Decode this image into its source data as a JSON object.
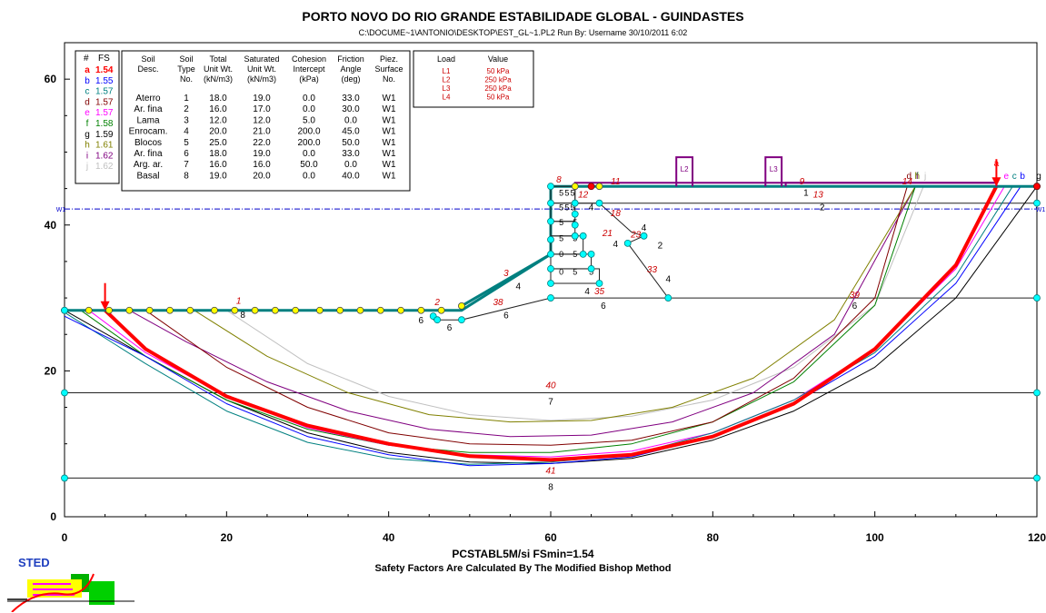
{
  "header": {
    "title": "PORTO NOVO DO RIO GRANDE ESTABILIDADE GLOBAL - GUINDASTES",
    "subtitle": "C:\\DOCUME~1\\ANTONIO\\DESKTOP\\EST_GL~1.PL2   Run By: Username   30/10/2011   6:02"
  },
  "footer": {
    "line1": "PCSTABL5M/si  FSmin=1.54",
    "line2": "Safety Factors Are Calculated By The Modified Bishop Method"
  },
  "logo": {
    "text": "STED"
  },
  "colors": {
    "critical": "#ff0000",
    "water": "#0000cc",
    "profile": "#008080",
    "node": "#ffff00",
    "node2": "#00ffff"
  },
  "chart_data": {
    "type": "line",
    "xlim": [
      0,
      120
    ],
    "ylim": [
      0,
      65
    ],
    "xticks": [
      0,
      20,
      40,
      60,
      80,
      100,
      120
    ],
    "yticks": [
      0,
      20,
      40,
      60
    ],
    "fs_table": {
      "headers": [
        "#",
        "FS"
      ],
      "rows": [
        {
          "id": "a",
          "fs": "1.54",
          "color": "#ff0000"
        },
        {
          "id": "b",
          "fs": "1.55",
          "color": "#0000ff"
        },
        {
          "id": "c",
          "fs": "1.57",
          "color": "#008080"
        },
        {
          "id": "d",
          "fs": "1.57",
          "color": "#800000"
        },
        {
          "id": "e",
          "fs": "1.57",
          "color": "#ff00ff"
        },
        {
          "id": "f",
          "fs": "1.58",
          "color": "#008000"
        },
        {
          "id": "g",
          "fs": "1.59",
          "color": "#000000"
        },
        {
          "id": "h",
          "fs": "1.61",
          "color": "#808000"
        },
        {
          "id": "i",
          "fs": "1.62",
          "color": "#800080"
        },
        {
          "id": "j",
          "fs": "1.62",
          "color": "#c0c0c0"
        }
      ]
    },
    "soil_table": {
      "headers": [
        [
          "Soil",
          "Desc.",
          ""
        ],
        [
          "Soil",
          "Type",
          "No."
        ],
        [
          "Total",
          "Unit Wt.",
          "(kN/m3)"
        ],
        [
          "Saturated",
          "Unit Wt.",
          "(kN/m3)"
        ],
        [
          "Cohesion",
          "Intercept",
          "(kPa)"
        ],
        [
          "Friction",
          "Angle",
          "(deg)"
        ],
        [
          "Piez.",
          "Surface",
          "No."
        ]
      ],
      "rows": [
        [
          "Aterro",
          "1",
          "18.0",
          "19.0",
          "0.0",
          "33.0",
          "W1"
        ],
        [
          "Ar. fina",
          "2",
          "16.0",
          "17.0",
          "0.0",
          "30.0",
          "W1"
        ],
        [
          "Lama",
          "3",
          "12.0",
          "12.0",
          "5.0",
          "0.0",
          "W1"
        ],
        [
          "Enrocam.",
          "4",
          "20.0",
          "21.0",
          "200.0",
          "45.0",
          "W1"
        ],
        [
          "Blocos",
          "5",
          "25.0",
          "22.0",
          "200.0",
          "50.0",
          "W1"
        ],
        [
          "Ar. fina",
          "6",
          "18.0",
          "19.0",
          "0.0",
          "33.0",
          "W1"
        ],
        [
          "Arg. ar.",
          "7",
          "16.0",
          "16.0",
          "50.0",
          "0.0",
          "W1"
        ],
        [
          "Basal",
          "8",
          "19.0",
          "20.0",
          "0.0",
          "40.0",
          "W1"
        ]
      ]
    },
    "load_table": {
      "headers": [
        "Load",
        "Value"
      ],
      "rows": [
        [
          "L1",
          "50 kPa"
        ],
        [
          "L2",
          "250 kPa"
        ],
        [
          "L3",
          "250 kPa"
        ],
        [
          "L4",
          "50 kPa"
        ]
      ]
    },
    "loads": [
      {
        "label": "L1",
        "x1": 63,
        "x2": 115,
        "h": 0.5
      },
      {
        "label": "L2",
        "x1": 75.5,
        "x2": 77.5,
        "h": 4
      },
      {
        "label": "L3",
        "x1": 86.5,
        "x2": 88.5,
        "h": 4
      },
      {
        "label": "L4",
        "x1": 89,
        "x2": 115,
        "h": 0.5
      }
    ],
    "water_table": {
      "label": "W1",
      "y": 42.2
    },
    "surface": {
      "x": [
        0,
        49,
        60,
        60,
        63,
        120
      ],
      "y": [
        28.3,
        28.3,
        36,
        45.3,
        45.3,
        45.3
      ]
    },
    "layer_lines": [
      {
        "x": [
          63,
          120
        ],
        "y": [
          43,
          43
        ],
        "label": "2"
      },
      {
        "x": [
          60,
          74.5,
          120
        ],
        "y": [
          30,
          30,
          30
        ],
        "label": "6"
      },
      {
        "x": [
          0,
          120
        ],
        "y": [
          17,
          17
        ],
        "label": "7"
      },
      {
        "x": [
          0,
          120
        ],
        "y": [
          5.3,
          5.3
        ],
        "label": "8"
      },
      {
        "x": [
          45.5,
          49,
          60
        ],
        "y": [
          27,
          27,
          30
        ],
        "label": "6"
      },
      {
        "x": [
          63,
          66,
          70,
          71.5,
          69.5,
          74.5
        ],
        "y": [
          43,
          43,
          39,
          38.5,
          37.5,
          30
        ],
        "label": "4"
      }
    ],
    "failure_surfaces": [
      {
        "id": "a",
        "color": "#ff0000",
        "width": 4,
        "x": [
          5,
          10,
          20,
          30,
          40,
          50,
          60,
          70,
          80,
          90,
          100,
          110,
          115
        ],
        "y": [
          28.3,
          23,
          16.5,
          12.5,
          10,
          8.3,
          7.8,
          8.5,
          11,
          15.5,
          23,
          34.5,
          45.3
        ]
      },
      {
        "id": "b",
        "color": "#0000ff",
        "width": 1,
        "x": [
          0,
          10,
          20,
          30,
          40,
          50,
          60,
          70,
          80,
          90,
          100,
          110,
          118
        ],
        "y": [
          27.5,
          22,
          15.5,
          11,
          8.5,
          7,
          7.3,
          8.2,
          11,
          15.5,
          22,
          32,
          45.3
        ]
      },
      {
        "id": "c",
        "color": "#008080",
        "width": 1,
        "x": [
          0,
          10,
          20,
          30,
          40,
          50,
          60,
          70,
          80,
          90,
          100,
          110,
          117
        ],
        "y": [
          28,
          21,
          14.5,
          10.2,
          8,
          7.2,
          7.5,
          8.5,
          11.5,
          16,
          22.5,
          33,
          45.3
        ]
      },
      {
        "id": "d",
        "color": "#800000",
        "width": 1,
        "x": [
          10,
          20,
          30,
          40,
          50,
          60,
          70,
          80,
          90,
          100,
          104
        ],
        "y": [
          28.3,
          20.5,
          15,
          11.5,
          10,
          9.8,
          10.5,
          13,
          19,
          30,
          45.3
        ]
      },
      {
        "id": "e",
        "color": "#ff00ff",
        "width": 1,
        "x": [
          3,
          10,
          20,
          30,
          40,
          50,
          60,
          70,
          80,
          90,
          100,
          110,
          116
        ],
        "y": [
          28.3,
          22.5,
          16.5,
          12.2,
          9.8,
          8.5,
          8.2,
          9,
          11.5,
          16,
          23,
          34,
          45.3
        ]
      },
      {
        "id": "f",
        "color": "#008000",
        "width": 1,
        "x": [
          2,
          10,
          20,
          30,
          40,
          50,
          60,
          70,
          80,
          90,
          100,
          105
        ],
        "y": [
          28.3,
          22,
          16,
          12,
          9.8,
          8.8,
          8.8,
          10,
          13,
          18.5,
          29,
          45.3
        ]
      },
      {
        "id": "g",
        "color": "#000000",
        "width": 1,
        "x": [
          0,
          10,
          20,
          30,
          40,
          50,
          60,
          70,
          80,
          90,
          100,
          110,
          120
        ],
        "y": [
          28.3,
          22,
          16,
          11.5,
          8.8,
          7.5,
          7.3,
          8,
          10.5,
          14.5,
          20.5,
          30,
          45.3
        ]
      },
      {
        "id": "h",
        "color": "#808000",
        "width": 1,
        "x": [
          16,
          25,
          35,
          45,
          55,
          65,
          75,
          85,
          95,
          105
        ],
        "y": [
          28.3,
          22,
          17,
          14,
          13,
          13.2,
          15,
          19,
          27,
          45.3
        ]
      },
      {
        "id": "i",
        "color": "#800080",
        "width": 1,
        "x": [
          8,
          15,
          25,
          35,
          45,
          55,
          65,
          75,
          85,
          95,
          105
        ],
        "y": [
          28.3,
          24,
          18.5,
          14.5,
          12,
          11,
          11.2,
          13,
          17,
          25,
          45.3
        ]
      },
      {
        "id": "j",
        "color": "#c0c0c0",
        "width": 1,
        "x": [
          20,
          30,
          40,
          50,
          60,
          70,
          80,
          90,
          100,
          106
        ],
        "y": [
          28.3,
          21,
          16.5,
          14,
          13.2,
          13.8,
          16,
          20.5,
          29,
          45.3
        ]
      }
    ],
    "boundary_labels": [
      {
        "text": "1",
        "x": 21.5,
        "y": 29.2
      },
      {
        "text": "2",
        "x": 46,
        "y": 29
      },
      {
        "text": "3",
        "x": 54.5,
        "y": 33
      },
      {
        "text": "38",
        "x": 53.5,
        "y": 29
      },
      {
        "text": "8",
        "x": 61,
        "y": 45.8
      },
      {
        "text": "11",
        "x": 68,
        "y": 45.6
      },
      {
        "text": "9",
        "x": 91,
        "y": 45.6
      },
      {
        "text": "12",
        "x": 64,
        "y": 43.8
      },
      {
        "text": "13",
        "x": 93,
        "y": 43.8
      },
      {
        "text": "14",
        "x": 104,
        "y": 45.6
      },
      {
        "text": "18",
        "x": 68,
        "y": 41.2
      },
      {
        "text": "21",
        "x": 67,
        "y": 38.5
      },
      {
        "text": "23",
        "x": 70.5,
        "y": 38.3
      },
      {
        "text": "33",
        "x": 72.5,
        "y": 33.5
      },
      {
        "text": "35",
        "x": 66,
        "y": 30.5
      },
      {
        "text": "39",
        "x": 97.5,
        "y": 30
      },
      {
        "text": "40",
        "x": 60,
        "y": 17.6
      },
      {
        "text": "41",
        "x": 60,
        "y": 5.9
      }
    ],
    "soil_labels": [
      {
        "text": "1",
        "x": 91.5,
        "y": 44
      },
      {
        "text": "2",
        "x": 93.5,
        "y": 42
      },
      {
        "text": "4",
        "x": 56,
        "y": 31.2
      },
      {
        "text": "4",
        "x": 64.5,
        "y": 30.5
      },
      {
        "text": "4",
        "x": 68,
        "y": 37
      },
      {
        "text": "4",
        "x": 71.5,
        "y": 39.2
      },
      {
        "text": "4",
        "x": 74.5,
        "y": 32.2
      },
      {
        "text": "2",
        "x": 73.5,
        "y": 36.8
      },
      {
        "text": "4",
        "x": 65,
        "y": 42
      },
      {
        "text": "6",
        "x": 44,
        "y": 26.5
      },
      {
        "text": "6",
        "x": 47.5,
        "y": 25.5
      },
      {
        "text": "6",
        "x": 54.5,
        "y": 27.2
      },
      {
        "text": "6",
        "x": 66.5,
        "y": 28.5
      },
      {
        "text": "6",
        "x": 97.5,
        "y": 28.5
      },
      {
        "text": "7",
        "x": 60,
        "y": 15.4
      },
      {
        "text": "8",
        "x": 60,
        "y": 3.7
      },
      {
        "text": "8",
        "x": 22,
        "y": 27.3
      }
    ],
    "critical_markers": [
      {
        "id": "a",
        "x": 5,
        "y": 28.3
      },
      {
        "id": "a",
        "x": 115,
        "y": 45.3
      }
    ],
    "block_labels": [
      {
        "text": "5",
        "x": 61.3,
        "y": 44
      },
      {
        "text": "5",
        "x": 62,
        "y": 44
      },
      {
        "text": "5",
        "x": 62.7,
        "y": 44
      },
      {
        "text": "5",
        "x": 61.3,
        "y": 42
      },
      {
        "text": "5",
        "x": 62,
        "y": 42
      },
      {
        "text": "5",
        "x": 62.7,
        "y": 42
      },
      {
        "text": "5",
        "x": 61.3,
        "y": 40
      },
      {
        "text": "5",
        "x": 63,
        "y": 40
      },
      {
        "text": "5",
        "x": 61.3,
        "y": 37.8
      },
      {
        "text": "5",
        "x": 63,
        "y": 37.8
      },
      {
        "text": "0",
        "x": 61.3,
        "y": 35.6
      },
      {
        "text": "5",
        "x": 63,
        "y": 35.6
      },
      {
        "text": "0",
        "x": 61.3,
        "y": 33.2
      },
      {
        "text": "5",
        "x": 63,
        "y": 33.2
      },
      {
        "text": "5",
        "x": 65,
        "y": 33.2
      }
    ],
    "nodes_yellow": [
      [
        0,
        28.3
      ],
      [
        3,
        28.3
      ],
      [
        5.5,
        28.3
      ],
      [
        8,
        28.3
      ],
      [
        10.5,
        28.3
      ],
      [
        13,
        28.3
      ],
      [
        15.5,
        28.3
      ],
      [
        18.5,
        28.3
      ],
      [
        21,
        28.3
      ],
      [
        23.5,
        28.3
      ],
      [
        26,
        28.3
      ],
      [
        28.5,
        28.3
      ],
      [
        31.5,
        28.3
      ],
      [
        34,
        28.3
      ],
      [
        36.5,
        28.3
      ],
      [
        39,
        28.3
      ],
      [
        41.5,
        28.3
      ],
      [
        44,
        28.3
      ],
      [
        46.5,
        28.3
      ],
      [
        49,
        28.9
      ],
      [
        63,
        45.3
      ],
      [
        66,
        45.3
      ],
      [
        120,
        45.3
      ]
    ],
    "nodes_cyan": [
      [
        0,
        28.3
      ],
      [
        0,
        17
      ],
      [
        0,
        5.3
      ],
      [
        60,
        45.3
      ],
      [
        60,
        43
      ],
      [
        60,
        40.5
      ],
      [
        60,
        38
      ],
      [
        60,
        36
      ],
      [
        60,
        34
      ],
      [
        60,
        32
      ],
      [
        60,
        30
      ],
      [
        63,
        43
      ],
      [
        63,
        41.5
      ],
      [
        63,
        40
      ],
      [
        63,
        38.5
      ],
      [
        64,
        38.5
      ],
      [
        64,
        36
      ],
      [
        65,
        36
      ],
      [
        65,
        34
      ],
      [
        66,
        43
      ],
      [
        66,
        32
      ],
      [
        71.5,
        38.5
      ],
      [
        69.5,
        37.5
      ],
      [
        74.5,
        30
      ],
      [
        45.5,
        27.5
      ],
      [
        46,
        27
      ],
      [
        49,
        27
      ],
      [
        120,
        43
      ],
      [
        120,
        30
      ],
      [
        120,
        17
      ],
      [
        120,
        5.3
      ],
      [
        120,
        45.3
      ]
    ]
  }
}
